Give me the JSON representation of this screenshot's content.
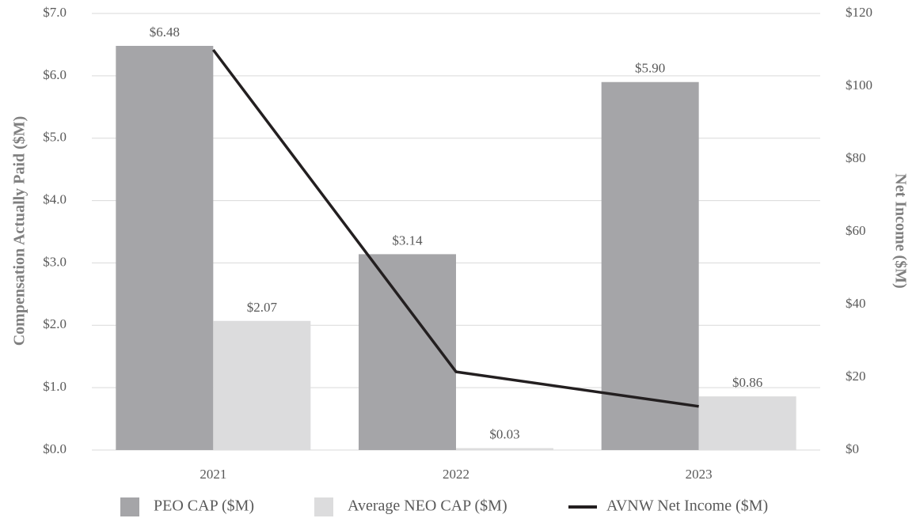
{
  "chart_data": {
    "type": "bar",
    "categories": [
      "2021",
      "2022",
      "2023"
    ],
    "series": [
      {
        "name": "PEO CAP ($M)",
        "kind": "bar",
        "axis": "left",
        "color": "#a5a5a8",
        "values": [
          6.48,
          3.14,
          5.9
        ],
        "labels": [
          "$6.48",
          "$3.14",
          "$5.90"
        ]
      },
      {
        "name": "Average NEO CAP ($M)",
        "kind": "bar",
        "axis": "left",
        "color": "#dcdcdd",
        "values": [
          2.07,
          0.03,
          0.86
        ],
        "labels": [
          "$2.07",
          "$0.03",
          "$0.86"
        ]
      },
      {
        "name": "AVNW Net Income ($M)",
        "kind": "line",
        "axis": "right",
        "color": "#231f20",
        "values": [
          110,
          21.5,
          12
        ]
      }
    ],
    "ylabel": "Compensation Actually Paid ($M)",
    "y2label": "Net Income ($M)",
    "ylim": [
      0,
      7
    ],
    "y2lim": [
      0,
      120
    ],
    "yticks": [
      "$0.0",
      "$1.0",
      "$2.0",
      "$3.0",
      "$4.0",
      "$5.0",
      "$6.0",
      "$7.0"
    ],
    "y2ticks": [
      "$0",
      "$20",
      "$40",
      "$60",
      "$80",
      "$100",
      "$120"
    ],
    "grid": true,
    "legend_position": "bottom"
  }
}
